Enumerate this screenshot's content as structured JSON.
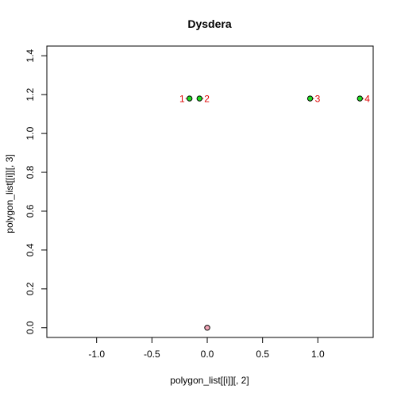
{
  "chart_data": {
    "type": "scatter",
    "title": "Dysdera",
    "xlabel": "polygon_list[[i]][, 2]",
    "ylabel": "polygon_list[[i]][, 3]",
    "xlim": [
      -1.45,
      1.5
    ],
    "ylim": [
      -0.05,
      1.45
    ],
    "xticks": [
      -1.0,
      -0.5,
      0.0,
      0.5,
      1.0
    ],
    "xtick_labels": [
      "-1.0",
      "-0.5",
      "0.0",
      "0.5",
      "1.0"
    ],
    "yticks": [
      0.0,
      0.2,
      0.4,
      0.6,
      0.8,
      1.0,
      1.2,
      1.4
    ],
    "ytick_labels": [
      "0.0",
      "0.2",
      "0.4",
      "0.6",
      "0.8",
      "1.0",
      "1.2",
      "1.4"
    ],
    "grid": false,
    "legend": "none",
    "points": [
      {
        "x": -0.16,
        "y": 1.18,
        "label": "1",
        "label_side": "left",
        "color": "#22dd22"
      },
      {
        "x": -0.07,
        "y": 1.18,
        "label": "2",
        "label_side": "right",
        "color": "#22dd22"
      },
      {
        "x": 0.93,
        "y": 1.18,
        "label": "3",
        "label_side": "right",
        "color": "#22dd22"
      },
      {
        "x": 1.38,
        "y": 1.18,
        "label": "4",
        "label_side": "right",
        "color": "#22dd22"
      },
      {
        "x": 0.0,
        "y": 0.0,
        "label": "",
        "label_side": "none",
        "color": "#f4a6b8"
      }
    ],
    "label_color": "#dd0000",
    "point_edge_color": "#000000"
  }
}
